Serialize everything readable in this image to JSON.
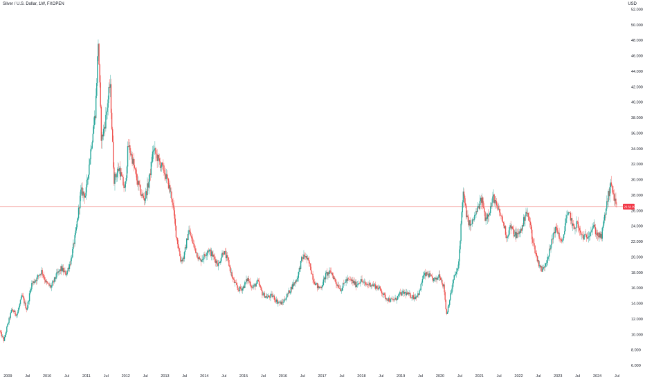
{
  "header": {
    "symbol_title": "Silver / U.S. Dollar, 1W, FXOPEN",
    "currency": "USD"
  },
  "colors": {
    "up": "#26a69a",
    "down": "#ef5350",
    "price_line": "#f7b6b4",
    "price_tag": "#f23645",
    "axis_text": "#131722"
  },
  "chart_data": {
    "type": "candlestick",
    "title": "Silver / U.S. Dollar, 1W, FXOPEN",
    "ylabel": "USD",
    "ylim": [
      5.2,
      53.2
    ],
    "y_ticks": [
      "52.000",
      "50.000",
      "48.000",
      "46.000",
      "44.000",
      "42.000",
      "40.000",
      "38.000",
      "36.000",
      "34.000",
      "32.000",
      "30.000",
      "28.000",
      "26.000",
      "24.000",
      "22.000",
      "20.000",
      "18.000",
      "16.000",
      "14.000",
      "12.000",
      "10.000",
      "8.000",
      "6.000"
    ],
    "x_ticks": [
      {
        "label": "2009",
        "t": 2009.0
      },
      {
        "label": "Jul",
        "t": 2009.5
      },
      {
        "label": "2010",
        "t": 2010.0
      },
      {
        "label": "Jul",
        "t": 2010.5
      },
      {
        "label": "2011",
        "t": 2011.0
      },
      {
        "label": "Jul",
        "t": 2011.5
      },
      {
        "label": "2012",
        "t": 2012.0
      },
      {
        "label": "Jul",
        "t": 2012.5
      },
      {
        "label": "2013",
        "t": 2013.0
      },
      {
        "label": "Jul",
        "t": 2013.5
      },
      {
        "label": "2014",
        "t": 2014.0
      },
      {
        "label": "Jul",
        "t": 2014.5
      },
      {
        "label": "2015",
        "t": 2015.0
      },
      {
        "label": "Jul",
        "t": 2015.5
      },
      {
        "label": "2016",
        "t": 2016.0
      },
      {
        "label": "Jul",
        "t": 2016.5
      },
      {
        "label": "2017",
        "t": 2017.0
      },
      {
        "label": "Jul",
        "t": 2017.5
      },
      {
        "label": "2018",
        "t": 2018.0
      },
      {
        "label": "Jul",
        "t": 2018.5
      },
      {
        "label": "2019",
        "t": 2019.0
      },
      {
        "label": "Jul",
        "t": 2019.5
      },
      {
        "label": "2020",
        "t": 2020.0
      },
      {
        "label": "Jul",
        "t": 2020.5
      },
      {
        "label": "2021",
        "t": 2021.0
      },
      {
        "label": "Jul",
        "t": 2021.5
      },
      {
        "label": "2022",
        "t": 2022.0
      },
      {
        "label": "Jul",
        "t": 2022.5
      },
      {
        "label": "2023",
        "t": 2023.0
      },
      {
        "label": "Jul",
        "t": 2023.5
      },
      {
        "label": "2024",
        "t": 2024.0
      },
      {
        "label": "Jul",
        "t": 2024.5
      }
    ],
    "x_range": [
      2008.8,
      2024.65
    ],
    "current_price": 26.5,
    "current_price_label": "26.50.09",
    "price_path": [
      [
        2008.8,
        10.5
      ],
      [
        2008.92,
        9.2
      ],
      [
        2009.0,
        11.0
      ],
      [
        2009.12,
        13.2
      ],
      [
        2009.25,
        12.5
      ],
      [
        2009.38,
        15.0
      ],
      [
        2009.5,
        13.2
      ],
      [
        2009.62,
        16.5
      ],
      [
        2009.75,
        17.2
      ],
      [
        2009.88,
        18.2
      ],
      [
        2010.0,
        16.6
      ],
      [
        2010.12,
        16.1
      ],
      [
        2010.25,
        17.6
      ],
      [
        2010.38,
        18.5
      ],
      [
        2010.5,
        17.8
      ],
      [
        2010.62,
        19.5
      ],
      [
        2010.75,
        23.2
      ],
      [
        2010.88,
        28.5
      ],
      [
        2011.0,
        28.0
      ],
      [
        2011.12,
        33.5
      ],
      [
        2011.25,
        39.0
      ],
      [
        2011.32,
        48.0
      ],
      [
        2011.4,
        35.0
      ],
      [
        2011.5,
        37.5
      ],
      [
        2011.62,
        42.5
      ],
      [
        2011.72,
        30.0
      ],
      [
        2011.85,
        31.5
      ],
      [
        2012.0,
        28.5
      ],
      [
        2012.08,
        34.5
      ],
      [
        2012.17,
        33.0
      ],
      [
        2012.3,
        30.0
      ],
      [
        2012.42,
        28.0
      ],
      [
        2012.5,
        27.5
      ],
      [
        2012.62,
        30.0
      ],
      [
        2012.72,
        34.0
      ],
      [
        2012.85,
        32.5
      ],
      [
        2013.0,
        31.0
      ],
      [
        2013.1,
        29.5
      ],
      [
        2013.2,
        27.5
      ],
      [
        2013.3,
        23.0
      ],
      [
        2013.42,
        19.5
      ],
      [
        2013.5,
        20.0
      ],
      [
        2013.62,
        23.5
      ],
      [
        2013.75,
        21.5
      ],
      [
        2013.9,
        19.5
      ],
      [
        2014.0,
        20.0
      ],
      [
        2014.12,
        21.0
      ],
      [
        2014.25,
        20.0
      ],
      [
        2014.38,
        19.0
      ],
      [
        2014.5,
        20.8
      ],
      [
        2014.62,
        19.5
      ],
      [
        2014.75,
        17.0
      ],
      [
        2014.88,
        15.8
      ],
      [
        2015.0,
        16.0
      ],
      [
        2015.12,
        17.2
      ],
      [
        2015.25,
        16.0
      ],
      [
        2015.38,
        16.8
      ],
      [
        2015.5,
        15.2
      ],
      [
        2015.62,
        14.8
      ],
      [
        2015.75,
        15.0
      ],
      [
        2015.88,
        14.2
      ],
      [
        2016.0,
        14.0
      ],
      [
        2016.12,
        15.0
      ],
      [
        2016.25,
        16.2
      ],
      [
        2016.38,
        17.2
      ],
      [
        2016.5,
        19.8
      ],
      [
        2016.58,
        20.2
      ],
      [
        2016.7,
        19.0
      ],
      [
        2016.8,
        17.0
      ],
      [
        2016.92,
        16.0
      ],
      [
        2017.0,
        16.2
      ],
      [
        2017.12,
        17.8
      ],
      [
        2017.25,
        18.0
      ],
      [
        2017.38,
        16.6
      ],
      [
        2017.5,
        15.8
      ],
      [
        2017.62,
        17.0
      ],
      [
        2017.75,
        17.0
      ],
      [
        2017.88,
        16.4
      ],
      [
        2018.0,
        17.0
      ],
      [
        2018.12,
        16.4
      ],
      [
        2018.25,
        16.5
      ],
      [
        2018.38,
        16.2
      ],
      [
        2018.5,
        15.8
      ],
      [
        2018.62,
        14.8
      ],
      [
        2018.75,
        14.4
      ],
      [
        2018.88,
        14.5
      ],
      [
        2019.0,
        15.2
      ],
      [
        2019.12,
        15.4
      ],
      [
        2019.25,
        15.0
      ],
      [
        2019.38,
        14.8
      ],
      [
        2019.5,
        15.5
      ],
      [
        2019.58,
        17.5
      ],
      [
        2019.7,
        17.8
      ],
      [
        2019.8,
        17.2
      ],
      [
        2019.92,
        17.0
      ],
      [
        2020.0,
        17.8
      ],
      [
        2020.12,
        16.0
      ],
      [
        2020.18,
        12.5
      ],
      [
        2020.28,
        15.0
      ],
      [
        2020.38,
        17.5
      ],
      [
        2020.48,
        18.5
      ],
      [
        2020.55,
        24.0
      ],
      [
        2020.6,
        28.5
      ],
      [
        2020.7,
        25.0
      ],
      [
        2020.8,
        24.0
      ],
      [
        2020.92,
        25.5
      ],
      [
        2021.0,
        26.5
      ],
      [
        2021.08,
        27.5
      ],
      [
        2021.17,
        25.0
      ],
      [
        2021.28,
        26.0
      ],
      [
        2021.38,
        27.8
      ],
      [
        2021.45,
        26.5
      ],
      [
        2021.55,
        25.5
      ],
      [
        2021.62,
        24.5
      ],
      [
        2021.72,
        22.5
      ],
      [
        2021.8,
        24.0
      ],
      [
        2021.9,
        23.0
      ],
      [
        2022.0,
        22.8
      ],
      [
        2022.12,
        24.0
      ],
      [
        2022.2,
        26.0
      ],
      [
        2022.3,
        24.5
      ],
      [
        2022.38,
        22.0
      ],
      [
        2022.5,
        19.5
      ],
      [
        2022.62,
        18.2
      ],
      [
        2022.72,
        19.5
      ],
      [
        2022.82,
        21.0
      ],
      [
        2022.92,
        23.5
      ],
      [
        2023.0,
        23.5
      ],
      [
        2023.12,
        21.5
      ],
      [
        2023.22,
        25.0
      ],
      [
        2023.32,
        25.5
      ],
      [
        2023.42,
        23.5
      ],
      [
        2023.5,
        24.5
      ],
      [
        2023.58,
        23.0
      ],
      [
        2023.7,
        22.5
      ],
      [
        2023.8,
        23.0
      ],
      [
        2023.92,
        24.0
      ],
      [
        2024.0,
        23.0
      ],
      [
        2024.12,
        22.5
      ],
      [
        2024.2,
        25.0
      ],
      [
        2024.3,
        28.0
      ],
      [
        2024.38,
        29.5
      ],
      [
        2024.45,
        27.5
      ],
      [
        2024.5,
        26.5
      ]
    ],
    "grid": false,
    "legend": "none"
  }
}
